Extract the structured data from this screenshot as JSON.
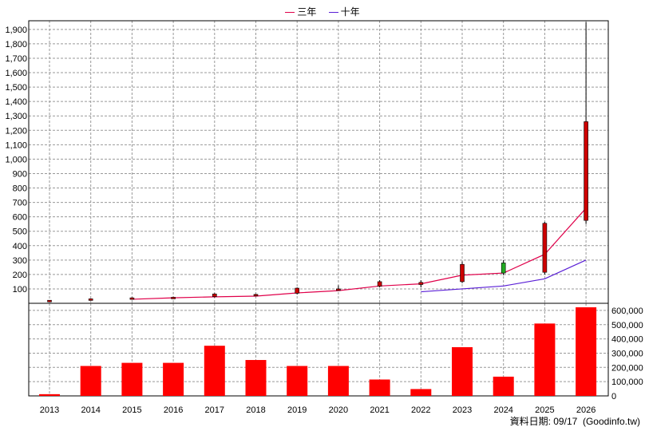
{
  "legend": {
    "item1_label": "三年",
    "item1_color": "#e0004a",
    "item2_label": "十年",
    "item2_color": "#5a1fd6"
  },
  "footer": {
    "label": "資料日期: 09/17",
    "source": "(Goodinfo.tw)"
  },
  "chart_data": [
    {
      "type": "candlestick",
      "years": [
        "2013",
        "2014",
        "2015",
        "2016",
        "2017",
        "2018",
        "2019",
        "2020",
        "2021",
        "2022",
        "2023",
        "2024",
        "2025",
        "2026"
      ],
      "ohlc": [
        {
          "open": 20,
          "high": 22,
          "low": 18,
          "close": 21
        },
        {
          "open": 30,
          "high": 33,
          "low": 27,
          "close": 31
        },
        {
          "open": 36,
          "high": 42,
          "low": 33,
          "close": 38
        },
        {
          "open": 40,
          "high": 45,
          "low": 37,
          "close": 42
        },
        {
          "open": 46,
          "high": 70,
          "low": 40,
          "close": 65
        },
        {
          "open": 55,
          "high": 65,
          "low": 50,
          "close": 62
        },
        {
          "open": 70,
          "high": 110,
          "low": 62,
          "close": 105
        },
        {
          "open": 100,
          "high": 125,
          "low": 88,
          "close": 100
        },
        {
          "open": 118,
          "high": 160,
          "low": 110,
          "close": 150
        },
        {
          "open": 130,
          "high": 160,
          "low": 110,
          "close": 145
        },
        {
          "open": 150,
          "high": 290,
          "low": 140,
          "close": 270
        },
        {
          "open": 280,
          "high": 300,
          "low": 195,
          "close": 210
        },
        {
          "open": 215,
          "high": 565,
          "low": 200,
          "close": 555
        },
        {
          "open": 575,
          "high": 1950,
          "low": 550,
          "close": 1260
        }
      ],
      "up_color": "#cc0000",
      "down_color": "#22aa22",
      "series": [
        {
          "name": "三年",
          "color": "#e0004a",
          "start_index": 2,
          "values": [
            null,
            null,
            28,
            38,
            45,
            50,
            72,
            88,
            120,
            135,
            195,
            210,
            340,
            660
          ]
        },
        {
          "name": "十年",
          "color": "#5a1fd6",
          "start_index": 9,
          "values": [
            null,
            null,
            null,
            null,
            null,
            null,
            null,
            null,
            null,
            80,
            100,
            120,
            170,
            300
          ]
        }
      ],
      "y_ticks": [
        100,
        200,
        300,
        400,
        500,
        600,
        700,
        800,
        900,
        "1,000",
        "1,100",
        "1,200",
        "1,300",
        "1,400",
        "1,500",
        "1,600",
        "1,700",
        "1,800",
        "1,900"
      ],
      "ylim": [
        0,
        1960
      ],
      "grid": true
    },
    {
      "type": "bar",
      "categories": [
        "2013",
        "2014",
        "2015",
        "2016",
        "2017",
        "2018",
        "2019",
        "2020",
        "2021",
        "2022",
        "2023",
        "2024",
        "2025",
        "2026"
      ],
      "values": [
        12000,
        210000,
        232000,
        232000,
        352000,
        252000,
        210000,
        210000,
        115000,
        48000,
        342000,
        135000,
        508000,
        622000
      ],
      "bar_color": "#ff0000",
      "y_ticks": [
        "0",
        "100,000",
        "200,000",
        "300,000",
        "400,000",
        "500,000",
        "600,000"
      ],
      "ylim": [
        0,
        650000
      ],
      "grid": true
    }
  ]
}
